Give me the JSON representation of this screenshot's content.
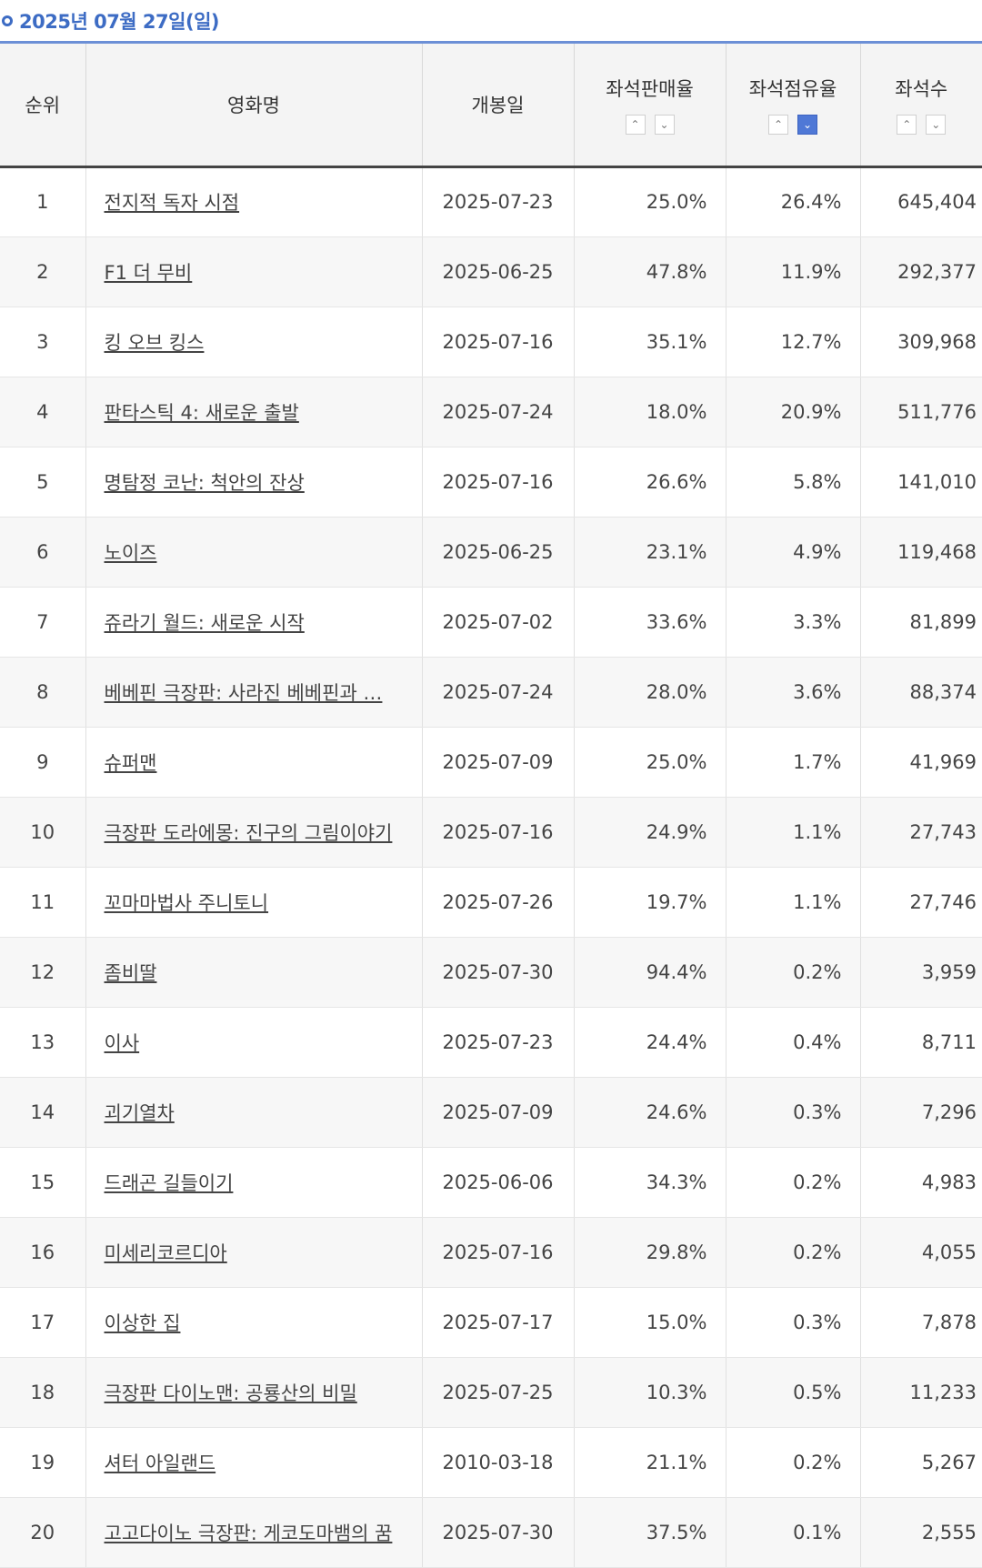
{
  "date": "2025년 07월 27일(일)",
  "headers": {
    "rank": "순위",
    "title": "영화명",
    "open_date": "개봉일",
    "seat_sales_rate": "좌석판매율",
    "seat_share": "좌석점유율",
    "seats": "좌석수"
  },
  "sort_icons": {
    "up": "chevron-up-icon",
    "down": "chevron-down-icon",
    "active": "seat_share-down"
  },
  "colors": {
    "accent": "#3d6cc4",
    "active_sort": "#4f78d6"
  },
  "rows": [
    {
      "rank": "1",
      "title": "전지적 독자 시점",
      "open_date": "2025-07-23",
      "sales_rate": "25.0%",
      "share": "26.4%",
      "seats": "645,404"
    },
    {
      "rank": "2",
      "title": "F1 더 무비",
      "open_date": "2025-06-25",
      "sales_rate": "47.8%",
      "share": "11.9%",
      "seats": "292,377"
    },
    {
      "rank": "3",
      "title": "킹 오브 킹스",
      "open_date": "2025-07-16",
      "sales_rate": "35.1%",
      "share": "12.7%",
      "seats": "309,968"
    },
    {
      "rank": "4",
      "title": "판타스틱 4: 새로운 출발",
      "open_date": "2025-07-24",
      "sales_rate": "18.0%",
      "share": "20.9%",
      "seats": "511,776"
    },
    {
      "rank": "5",
      "title": "명탐정 코난: 척안의 잔상",
      "open_date": "2025-07-16",
      "sales_rate": "26.6%",
      "share": "5.8%",
      "seats": "141,010"
    },
    {
      "rank": "6",
      "title": "노이즈",
      "open_date": "2025-06-25",
      "sales_rate": "23.1%",
      "share": "4.9%",
      "seats": "119,468"
    },
    {
      "rank": "7",
      "title": "쥬라기 월드: 새로운 시작",
      "open_date": "2025-07-02",
      "sales_rate": "33.6%",
      "share": "3.3%",
      "seats": "81,899"
    },
    {
      "rank": "8",
      "title": "베베핀 극장판: 사라진 베베핀과 …",
      "open_date": "2025-07-24",
      "sales_rate": "28.0%",
      "share": "3.6%",
      "seats": "88,374"
    },
    {
      "rank": "9",
      "title": "슈퍼맨",
      "open_date": "2025-07-09",
      "sales_rate": "25.0%",
      "share": "1.7%",
      "seats": "41,969"
    },
    {
      "rank": "10",
      "title": "극장판 도라에몽: 진구의 그림이야기",
      "open_date": "2025-07-16",
      "sales_rate": "24.9%",
      "share": "1.1%",
      "seats": "27,743"
    },
    {
      "rank": "11",
      "title": "꼬마마법사 주니토니",
      "open_date": "2025-07-26",
      "sales_rate": "19.7%",
      "share": "1.1%",
      "seats": "27,746"
    },
    {
      "rank": "12",
      "title": "좀비딸",
      "open_date": "2025-07-30",
      "sales_rate": "94.4%",
      "share": "0.2%",
      "seats": "3,959"
    },
    {
      "rank": "13",
      "title": "이사",
      "open_date": "2025-07-23",
      "sales_rate": "24.4%",
      "share": "0.4%",
      "seats": "8,711"
    },
    {
      "rank": "14",
      "title": "괴기열차",
      "open_date": "2025-07-09",
      "sales_rate": "24.6%",
      "share": "0.3%",
      "seats": "7,296"
    },
    {
      "rank": "15",
      "title": "드래곤 길들이기",
      "open_date": "2025-06-06",
      "sales_rate": "34.3%",
      "share": "0.2%",
      "seats": "4,983"
    },
    {
      "rank": "16",
      "title": "미세리코르디아",
      "open_date": "2025-07-16",
      "sales_rate": "29.8%",
      "share": "0.2%",
      "seats": "4,055"
    },
    {
      "rank": "17",
      "title": "이상한 집",
      "open_date": "2025-07-17",
      "sales_rate": "15.0%",
      "share": "0.3%",
      "seats": "7,878"
    },
    {
      "rank": "18",
      "title": "극장판 다이노맨: 공룡산의 비밀",
      "open_date": "2025-07-25",
      "sales_rate": "10.3%",
      "share": "0.5%",
      "seats": "11,233"
    },
    {
      "rank": "19",
      "title": "셔터 아일랜드",
      "open_date": "2010-03-18",
      "sales_rate": "21.1%",
      "share": "0.2%",
      "seats": "5,267"
    },
    {
      "rank": "20",
      "title": "고고다이노 극장판: 게코도마뱀의 꿈",
      "open_date": "2025-07-30",
      "sales_rate": "37.5%",
      "share": "0.1%",
      "seats": "2,555"
    }
  ]
}
